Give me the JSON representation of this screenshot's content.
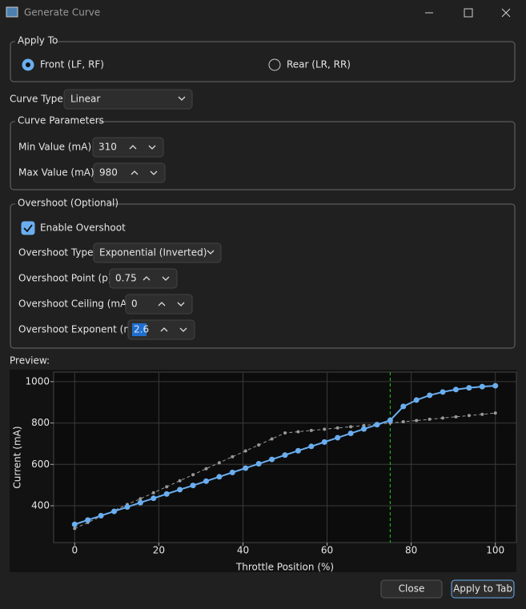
{
  "window": {
    "title": "Generate Curve"
  },
  "apply_to": {
    "label": "Apply To",
    "options": [
      {
        "label": "Front (LF, RF)",
        "checked": true
      },
      {
        "label": "Rear (LR, RR)",
        "checked": false
      }
    ]
  },
  "curve_type": {
    "label": "Curve Type:",
    "value": "Linear"
  },
  "curve_parameters": {
    "label": "Curve Parameters",
    "fields": [
      {
        "label": "Min Value (mA):",
        "value": 310
      },
      {
        "label": "Max Value (mA):",
        "value": 980
      }
    ]
  },
  "overshoot": {
    "label": "Overshoot (Optional)",
    "enable": {
      "label": "Enable Overshoot",
      "checked": true
    },
    "type": {
      "label": "Overshoot Type:",
      "value": "Exponential (Inverted)"
    },
    "fields": [
      {
        "label": "Overshoot Point (p):",
        "value": 0.75
      },
      {
        "label": "Overshoot Ceiling (mA):",
        "value": 0
      },
      {
        "label": "Overshoot Exponent (n):",
        "value": 2.6
      }
    ]
  },
  "preview": {
    "label": "Preview:"
  },
  "chart_data": {
    "type": "line",
    "x_label": "Throttle Position (%)",
    "y_label": "Current (mA)",
    "x": [
      0,
      3.125,
      6.25,
      9.375,
      12.5,
      15.625,
      18.75,
      21.875,
      25,
      28.125,
      31.25,
      34.375,
      37.5,
      40.625,
      43.75,
      46.875,
      50,
      53.125,
      56.25,
      59.375,
      62.5,
      65.625,
      68.75,
      71.875,
      75,
      78.125,
      81.25,
      84.375,
      87.5,
      90.625,
      93.75,
      96.875,
      100
    ],
    "series": [
      {
        "color": "#6aaef0",
        "dashed": false,
        "values": [
          310,
          331,
          352,
          373,
          394,
          415,
          436,
          457,
          478,
          498,
          519,
          540,
          561,
          582,
          603,
          624,
          645,
          666,
          687,
          708,
          729,
          750,
          771,
          792,
          813,
          880,
          911,
          934,
          950,
          962,
          970,
          976,
          980
        ]
      },
      {
        "color": "#9a9a9a",
        "dashed": true,
        "values": [
          290,
          319,
          348,
          377,
          406,
          434,
          463,
          492,
          521,
          550,
          579,
          608,
          637,
          665,
          694,
          723,
          752,
          758,
          764,
          770,
          776,
          782,
          788,
          794,
          800,
          806,
          812,
          818,
          824,
          830,
          836,
          842,
          848
        ]
      }
    ],
    "xlim": [
      -5,
      105
    ],
    "ylim": [
      222,
      1046
    ],
    "xticks": [
      0,
      20,
      40,
      60,
      80,
      100
    ],
    "yticks": [
      400,
      600,
      800,
      1000
    ],
    "grid": true,
    "vline": 75,
    "vline_color": "#22cc22"
  },
  "buttons": [
    {
      "label": "Close"
    },
    {
      "label": "Apply to Tab"
    }
  ]
}
